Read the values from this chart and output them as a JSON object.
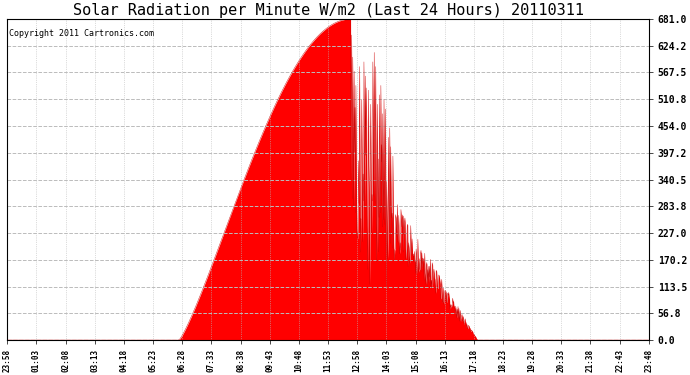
{
  "title": "Solar Radiation per Minute W/m2 (Last 24 Hours) 20110311",
  "copyright_text": "Copyright 2011 Cartronics.com",
  "background_color": "#ffffff",
  "plot_bg_color": "#ffffff",
  "fill_color": "#ff0000",
  "line_color": "#cc0000",
  "dashed_line_color": "#ff0000",
  "grid_color": "#bbbbbb",
  "title_fontsize": 11,
  "ymin": 0.0,
  "ymax": 681.0,
  "yticks": [
    0.0,
    56.8,
    113.5,
    170.2,
    227.0,
    283.8,
    340.5,
    397.2,
    454.0,
    510.8,
    567.5,
    624.2,
    681.0
  ],
  "x_tick_labels": [
    "23:58",
    "01:03",
    "02:08",
    "03:13",
    "04:18",
    "05:23",
    "06:28",
    "07:33",
    "08:38",
    "09:43",
    "10:48",
    "11:53",
    "12:58",
    "14:03",
    "15:08",
    "16:13",
    "17:18",
    "18:23",
    "19:28",
    "20:33",
    "21:38",
    "22:43",
    "23:48"
  ],
  "num_points": 1440
}
